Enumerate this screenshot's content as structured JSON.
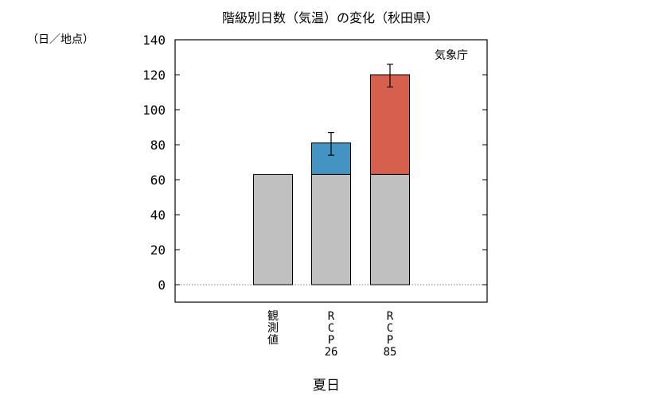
{
  "chart_data": {
    "type": "bar",
    "title": "階級別日数（気温）の変化（秋田県）",
    "ylabel": "（日／地点）",
    "xlabel": "夏日",
    "source_label": "気象庁",
    "ylim": [
      -10,
      140
    ],
    "yticks": [
      0,
      20,
      40,
      60,
      80,
      100,
      120,
      140
    ],
    "categories": [
      "観測値",
      "RCP26",
      "RCP85"
    ],
    "category_label_lines": [
      [
        "観",
        "測",
        "値"
      ],
      [
        "R",
        "C",
        "P",
        "26"
      ],
      [
        "R",
        "C",
        "P",
        "85"
      ]
    ],
    "series": [
      {
        "role": "base",
        "color": "#c0c0c0",
        "values": [
          63,
          63,
          63
        ]
      },
      {
        "role": "increase",
        "colors": [
          null,
          "#4393c3",
          "#d6604d"
        ],
        "values": [
          0,
          18,
          57
        ]
      }
    ],
    "error_bars": [
      null,
      {
        "low": 74,
        "high": 87
      },
      {
        "low": 113,
        "high": 126
      }
    ],
    "zero_line": "dotted",
    "grid": false,
    "legend": "none"
  }
}
